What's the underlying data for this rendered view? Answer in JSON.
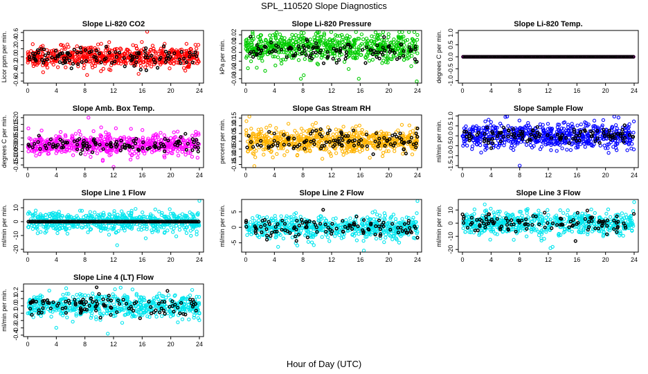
{
  "figure": {
    "title": "SPL_110520  Slope Diagnostics",
    "xlabel": "Hour of Day (UTC)"
  },
  "chart_data": [
    {
      "type": "scatter",
      "title": "Slope Li-820 CO2",
      "xlabel": "Hour of Day (UTC)",
      "ylabel": "Licor ppm per min.",
      "xlim": [
        0,
        24
      ],
      "ylim": [
        -0.65,
        0.65
      ],
      "xticks": [
        "0",
        "4",
        "8",
        "12",
        "16",
        "20",
        "24"
      ],
      "yticks": [
        -0.6,
        -0.4,
        -0.2,
        0.0,
        0.2,
        0.4,
        0.6
      ],
      "yticklabels": [
        "-0.6",
        "-0.4",
        "-0.2",
        "0.0",
        "0.2",
        "0.4",
        "0.6"
      ],
      "grid": false,
      "series": [
        {
          "color": "#ff0000",
          "pointCount": 600,
          "spread": 0.13,
          "outliers": [
            [
              16.7,
              0.62
            ],
            [
              8.3,
              -0.45
            ],
            [
              15.5,
              -0.42
            ]
          ]
        },
        {
          "color": "#000000",
          "pointCount": 110,
          "spread": 0.11
        }
      ]
    },
    {
      "type": "scatter",
      "title": "Slope Li-820 Pressure",
      "xlabel": "Hour of Day (UTC)",
      "ylabel": "kPa per min.",
      "xlim": [
        0,
        24
      ],
      "ylim": [
        -0.035,
        0.025
      ],
      "xticks": [
        "0",
        "4",
        "8",
        "12",
        "16",
        "20",
        "24"
      ],
      "yticks": [
        -0.03,
        -0.02,
        -0.01,
        0.0,
        0.01,
        0.02
      ],
      "yticklabels": [
        "-0.03",
        "-0.02",
        "-0.01",
        "0.00",
        "0.01",
        "0.02"
      ],
      "grid": false,
      "series": [
        {
          "color": "#00cc00",
          "pointCount": 650,
          "spread": 0.008,
          "center": 0.006,
          "outliers": [
            [
              0.3,
              -0.018
            ],
            [
              7.7,
              -0.03
            ],
            [
              15.8,
              -0.03
            ],
            [
              23.9,
              -0.033
            ],
            [
              8.1,
              -0.026
            ]
          ]
        },
        {
          "color": "#000000",
          "pointCount": 110,
          "spread": 0.006,
          "center": 0.003
        }
      ]
    },
    {
      "type": "scatter",
      "title": "Slope Li-820 Temp.",
      "xlabel": "Hour of Day (UTC)",
      "ylabel": "degrees C per min.",
      "xlim": [
        0,
        24
      ],
      "ylim": [
        -1.1,
        1.1
      ],
      "xticks": [
        "0",
        "4",
        "8",
        "12",
        "16",
        "20",
        "24"
      ],
      "yticks": [
        -1.0,
        -0.5,
        0.0,
        0.5,
        1.0
      ],
      "yticklabels": [
        "-1.0",
        "-0.5",
        "0.0",
        "0.5",
        "1.0"
      ],
      "grid": false,
      "series": [
        {
          "color": "#ff00ff",
          "pointCount": 150,
          "spread": 0.0,
          "line": true
        },
        {
          "color": "#000000",
          "pointCount": 120,
          "spread": 0.0
        }
      ]
    },
    {
      "type": "scatter",
      "title": "Slope Amb. Box Temp.",
      "xlabel": "Hour of Day (UTC)",
      "ylabel": "degrees C per min.",
      "xlim": [
        0,
        24
      ],
      "ylim": [
        -0.17,
        0.22
      ],
      "xticks": [
        "0",
        "4",
        "8",
        "12",
        "16",
        "20",
        "24"
      ],
      "yticks": [
        -0.15,
        -0.1,
        -0.05,
        0.0,
        0.05,
        0.1,
        0.15,
        0.2
      ],
      "yticklabels": [
        "-0.15",
        "-0.10",
        "-0.05",
        "0.00",
        "0.05",
        "0.10",
        "0.15",
        "0.20"
      ],
      "grid": false,
      "series": [
        {
          "color": "#ff00ff",
          "pointCount": 600,
          "spread": 0.04,
          "outliers": [
            [
              8.5,
              0.2
            ],
            [
              12.0,
              -0.165
            ],
            [
              9.2,
              0.1
            ]
          ]
        },
        {
          "color": "#000000",
          "pointCount": 110,
          "spread": 0.025
        }
      ]
    },
    {
      "type": "scatter",
      "title": "Slope Gas Stream RH",
      "xlabel": "Hour of Day (UTC)",
      "ylabel": "percent per min.",
      "xlim": [
        0,
        24
      ],
      "ylim": [
        -0.17,
        0.17
      ],
      "xticks": [
        "0",
        "4",
        "8",
        "12",
        "16",
        "20",
        "24"
      ],
      "yticks": [
        -0.15,
        -0.1,
        -0.05,
        0.0,
        0.05,
        0.1,
        0.15
      ],
      "yticklabels": [
        "-0.15",
        "-0.10",
        "-0.05",
        "0.00",
        "0.05",
        "0.10",
        "0.15"
      ],
      "grid": false,
      "series": [
        {
          "color": "#ffb300",
          "pointCount": 650,
          "spread": 0.04,
          "outliers": [
            [
              0.5,
              0.16
            ],
            [
              1.2,
              -0.16
            ],
            [
              0.1,
              0.13
            ]
          ]
        },
        {
          "color": "#000000",
          "pointCount": 110,
          "spread": 0.035
        }
      ]
    },
    {
      "type": "scatter",
      "title": "Slope Sample Flow",
      "xlabel": "Hour of Day (UTC)",
      "ylabel": "ml/min per min.",
      "xlim": [
        0,
        24
      ],
      "ylim": [
        -1.6,
        1.05
      ],
      "xticks": [
        "0",
        "4",
        "8",
        "12",
        "16",
        "20",
        "24"
      ],
      "yticks": [
        -1.5,
        -1.0,
        -0.5,
        0.0,
        0.5,
        1.0
      ],
      "yticklabels": [
        "-1.5",
        "-1.0",
        "-0.5",
        "0.0",
        "0.5",
        "1.0"
      ],
      "grid": false,
      "series": [
        {
          "color": "#0000ff",
          "pointCount": 650,
          "spread": 0.32,
          "outliers": [
            [
              8.0,
              -1.5
            ],
            [
              6.0,
              0.95
            ]
          ]
        },
        {
          "color": "#000000",
          "pointCount": 110,
          "spread": 0.2
        }
      ]
    },
    {
      "type": "scatter",
      "title": "Slope Line 1 Flow",
      "xlabel": "Hour of Day (UTC)",
      "ylabel": "ml/min per min.",
      "xlim": [
        0,
        24
      ],
      "ylim": [
        -22,
        16
      ],
      "xticks": [
        "0",
        "4",
        "8",
        "12",
        "16",
        "20",
        "24"
      ],
      "yticks": [
        -20,
        -10,
        0,
        10
      ],
      "yticklabels": [
        "-20",
        "-10",
        "0",
        "10"
      ],
      "grid": false,
      "series": [
        {
          "color": "#00e5ee",
          "pointCount": 600,
          "spread": 3.5,
          "outliers": [
            [
              24.0,
              15
            ],
            [
              12.5,
              -17
            ],
            [
              16.5,
              -12
            ]
          ]
        },
        {
          "color": "#000000",
          "pointCount": 120,
          "spread": 0.0
        }
      ]
    },
    {
      "type": "scatter",
      "title": "Slope Line 2 Flow",
      "xlabel": "Hour of Day (UTC)",
      "ylabel": "ml/min per min.",
      "xlim": [
        0,
        24
      ],
      "ylim": [
        -8,
        9
      ],
      "xticks": [
        "0",
        "4",
        "8",
        "12",
        "16",
        "20",
        "24"
      ],
      "yticks": [
        -5,
        0,
        5
      ],
      "yticklabels": [
        "-5",
        "0",
        "5"
      ],
      "grid": false,
      "series": [
        {
          "color": "#00e5ee",
          "pointCount": 600,
          "spread": 1.8,
          "outliers": [
            [
              24.0,
              8.5
            ],
            [
              16.5,
              -7.5
            ]
          ]
        },
        {
          "color": "#000000",
          "pointCount": 110,
          "spread": 1.5
        }
      ]
    },
    {
      "type": "scatter",
      "title": "Slope Line 3 Flow",
      "xlabel": "Hour of Day (UTC)",
      "ylabel": "ml/min per min.",
      "xlim": [
        0,
        24
      ],
      "ylim": [
        -22,
        18
      ],
      "xticks": [
        "0",
        "4",
        "8",
        "12",
        "16",
        "20",
        "24"
      ],
      "yticks": [
        -20,
        -10,
        0,
        10
      ],
      "yticklabels": [
        "-20",
        "-10",
        "0",
        "10"
      ],
      "grid": false,
      "series": [
        {
          "color": "#00e5ee",
          "pointCount": 600,
          "spread": 4.5,
          "outliers": [
            [
              24.0,
              16
            ],
            [
              12.3,
              -19
            ],
            [
              12.6,
              -18
            ]
          ]
        },
        {
          "color": "#000000",
          "pointCount": 110,
          "spread": 3.5
        }
      ]
    },
    {
      "type": "scatter",
      "title": "Slope Line 4 (LT) Flow",
      "xlabel": "Hour of Day (UTC)",
      "ylabel": "ml/min per min.",
      "xlim": [
        0,
        24
      ],
      "ylim": [
        -0.42,
        0.3
      ],
      "xticks": [
        "0",
        "4",
        "8",
        "12",
        "16",
        "20",
        "24"
      ],
      "yticks": [
        -0.4,
        -0.3,
        -0.2,
        -0.1,
        0.0,
        0.1,
        0.2
      ],
      "yticklabels": [
        "-0.4",
        "-0.3",
        "-0.2",
        "-0.1",
        "0.0",
        "0.1",
        "0.2"
      ],
      "grid": false,
      "series": [
        {
          "color": "#00e5ee",
          "pointCount": 600,
          "spread": 0.08,
          "outliers": [
            [
              11.2,
              -0.38
            ],
            [
              13.0,
              0.25
            ],
            [
              4.0,
              -0.3
            ]
          ]
        },
        {
          "color": "#000000",
          "pointCount": 110,
          "spread": 0.07
        }
      ]
    }
  ]
}
